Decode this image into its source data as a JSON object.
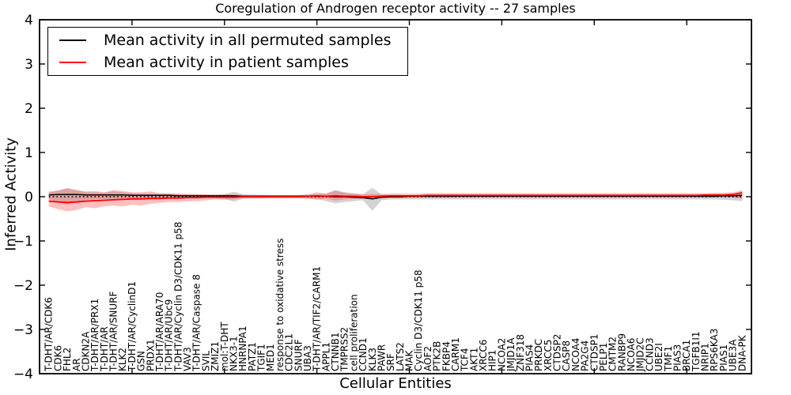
{
  "figure": {
    "title": "Coregulation of Androgen receptor activity -- 27 samples",
    "xlabel": "Cellular Entities",
    "ylabel": "Inferred Activity",
    "legend": {
      "entries": [
        {
          "label": "Mean activity in all permuted samples",
          "color": "#000000"
        },
        {
          "label": "Mean activity in patient samples",
          "color": "#ff0000"
        }
      ],
      "position": "upper left"
    }
  },
  "chart_data": {
    "type": "line",
    "title": "Coregulation of Androgen receptor activity -- 27 samples",
    "xlabel": "Cellular Entities",
    "ylabel": "Inferred Activity",
    "ylim": [
      -4,
      4
    ],
    "yticks": [
      -4,
      -3,
      -2,
      -1,
      0,
      1,
      2,
      3,
      4
    ],
    "xticks": [
      10,
      20,
      30,
      40,
      50,
      60,
      70
    ],
    "grid": false,
    "zero_line": true,
    "legend_position": "upper left",
    "frame_color": "#000000",
    "background_color": "#ffffff",
    "categories": [
      "T-DHT/AR/CDK6",
      "CDK6",
      "FHL2",
      "AR",
      "CDKN2A",
      "T-DHT/AR/PRX1",
      "T-DHT/AR",
      "T-DHT/AR/SNURF",
      "KLK2",
      "T-DHT/AR/CyclinD1",
      "GSN",
      "PRDX1",
      "T-DHT/AR/ARA70",
      "T-DHT/AR/Ubc9",
      "T-DHT/AR/Cyclin D3/CDK11 p58",
      "VAV3",
      "T-DHT/AR/Caspase 8",
      "SVIL",
      "ZMIZ1",
      "mol:T-DHT",
      "NKX3-1",
      "HNRNPA1",
      "PATZ1",
      "TGIF1",
      "MED1",
      "response to oxidative stress",
      "CDC2L1",
      "SNURF",
      "UBA3",
      "T-DHT/AR/TIF2/CARM1",
      "APPL1",
      "CTNNB1",
      "TMPRSS2",
      "cell proliferation",
      "CCND1",
      "KLK3",
      "PAWR",
      "SRF",
      "LATS2",
      "MAK",
      "Cyclin D3/CDK11 p58",
      "AOF2",
      "PTK2B",
      "FKBP4",
      "CARM1",
      "TCF4",
      "AKT1",
      "XRCC6",
      "HIP1",
      "NCOA2",
      "JMJD1A",
      "ZNF318",
      "PIAS4",
      "PRKDC",
      "XRCC5",
      "CTDSP2",
      "CASP8",
      "NCOA4",
      "PA2G4",
      "CTDSP1",
      "PELP1",
      "CMTM2",
      "RANBP9",
      "NCOA6",
      "JMJD2C",
      "CCND3",
      "UBE2I",
      "TMF1",
      "PIAS3",
      "BRCA1",
      "TGFB1I1",
      "NRIP1",
      "RPS6KA3",
      "PIAS1",
      "UBE3A",
      "DNA-PK"
    ],
    "series": [
      {
        "name": "Mean activity in all permuted samples",
        "color": "#000000",
        "width": 1.5,
        "values": [
          0.04,
          0.05,
          0.05,
          0.05,
          0.04,
          0.04,
          0.04,
          0.04,
          0.04,
          0.03,
          0.03,
          0.03,
          0.03,
          0.03,
          0.02,
          0.02,
          0.02,
          0.02,
          0.02,
          0.02,
          0.02,
          0.01,
          0.01,
          0.01,
          0.01,
          0.01,
          0.01,
          0.01,
          0.01,
          0.01,
          0.01,
          0.0,
          0.0,
          -0.01,
          -0.02,
          -0.05,
          -0.01,
          0.0,
          0.0,
          0.01,
          0.01,
          0.01,
          0.01,
          0.01,
          0.01,
          0.01,
          0.01,
          0.01,
          0.01,
          0.01,
          0.01,
          0.01,
          0.01,
          0.01,
          0.01,
          0.01,
          0.01,
          0.01,
          0.01,
          0.01,
          0.01,
          0.01,
          0.01,
          0.01,
          0.01,
          0.01,
          0.01,
          0.01,
          0.01,
          0.01,
          0.01,
          0.01,
          0.01,
          0.02,
          0.02,
          0.03
        ]
      },
      {
        "name": "Mean activity in patient samples",
        "color": "#ff0000",
        "width": 1.8,
        "values": [
          -0.1,
          -0.12,
          -0.13,
          -0.12,
          -0.1,
          -0.09,
          -0.08,
          -0.07,
          -0.06,
          -0.05,
          -0.05,
          -0.04,
          -0.04,
          -0.03,
          -0.03,
          -0.02,
          -0.02,
          -0.01,
          -0.01,
          -0.01,
          -0.01,
          0.0,
          0.0,
          0.0,
          0.0,
          0.0,
          0.0,
          0.0,
          0.01,
          0.02,
          0.01,
          0.02,
          0.01,
          0.01,
          0.0,
          0.0,
          0.01,
          0.02,
          0.02,
          0.02,
          0.02,
          0.03,
          0.03,
          0.03,
          0.03,
          0.03,
          0.03,
          0.03,
          0.03,
          0.03,
          0.03,
          0.03,
          0.03,
          0.03,
          0.03,
          0.03,
          0.03,
          0.03,
          0.03,
          0.03,
          0.03,
          0.03,
          0.03,
          0.03,
          0.03,
          0.03,
          0.03,
          0.03,
          0.03,
          0.03,
          0.03,
          0.04,
          0.04,
          0.04,
          0.05,
          0.09
        ]
      }
    ],
    "bands": [
      {
        "name": "permuted-samples-range",
        "color": "#8c8c8c",
        "opacity": 0.38,
        "upper": [
          0.12,
          0.14,
          0.2,
          0.15,
          0.1,
          0.1,
          0.09,
          0.12,
          0.1,
          0.08,
          0.07,
          0.07,
          0.06,
          0.06,
          0.06,
          0.05,
          0.05,
          0.05,
          0.05,
          0.06,
          0.11,
          0.06,
          0.05,
          0.04,
          0.04,
          0.04,
          0.04,
          0.04,
          0.05,
          0.06,
          0.08,
          0.15,
          0.1,
          0.08,
          0.06,
          0.2,
          0.05,
          0.04,
          0.04,
          0.03,
          0.03,
          0.03,
          0.03,
          0.03,
          0.03,
          0.03,
          0.03,
          0.03,
          0.03,
          0.03,
          0.03,
          0.03,
          0.03,
          0.03,
          0.03,
          0.03,
          0.03,
          0.03,
          0.03,
          0.03,
          0.03,
          0.03,
          0.03,
          0.03,
          0.03,
          0.03,
          0.03,
          0.03,
          0.03,
          0.03,
          0.03,
          0.03,
          0.03,
          0.04,
          0.05,
          0.06
        ],
        "lower": [
          -0.06,
          -0.12,
          -0.18,
          -0.12,
          -0.08,
          -0.06,
          -0.05,
          -0.06,
          -0.08,
          -0.06,
          -0.05,
          -0.05,
          -0.04,
          -0.04,
          -0.04,
          -0.04,
          -0.04,
          -0.03,
          -0.03,
          -0.05,
          -0.11,
          -0.05,
          -0.04,
          -0.03,
          -0.03,
          -0.03,
          -0.03,
          -0.03,
          -0.04,
          -0.05,
          -0.1,
          -0.15,
          -0.12,
          -0.1,
          -0.08,
          -0.32,
          -0.08,
          -0.06,
          -0.06,
          -0.06,
          -0.06,
          -0.06,
          -0.06,
          -0.06,
          -0.06,
          -0.06,
          -0.06,
          -0.06,
          -0.06,
          -0.06,
          -0.06,
          -0.06,
          -0.06,
          -0.06,
          -0.06,
          -0.06,
          -0.06,
          -0.06,
          -0.06,
          -0.06,
          -0.06,
          -0.06,
          -0.06,
          -0.06,
          -0.06,
          -0.06,
          -0.06,
          -0.06,
          -0.06,
          -0.06,
          -0.06,
          -0.06,
          -0.06,
          -0.07,
          -0.08,
          -0.1
        ]
      },
      {
        "name": "patient-samples-range",
        "color": "#ff2a2a",
        "opacity": 0.3,
        "upper": [
          0.1,
          0.14,
          0.18,
          0.15,
          0.12,
          0.13,
          0.1,
          0.15,
          0.13,
          0.1,
          0.1,
          0.12,
          0.08,
          0.08,
          0.07,
          0.06,
          0.06,
          0.05,
          0.04,
          0.05,
          0.05,
          0.03,
          0.03,
          0.04,
          0.03,
          0.03,
          0.03,
          0.03,
          0.05,
          0.1,
          0.06,
          0.14,
          0.09,
          0.06,
          0.05,
          0.06,
          0.06,
          0.07,
          0.07,
          0.07,
          0.07,
          0.08,
          0.08,
          0.08,
          0.08,
          0.08,
          0.08,
          0.08,
          0.08,
          0.08,
          0.08,
          0.08,
          0.08,
          0.08,
          0.08,
          0.08,
          0.08,
          0.08,
          0.08,
          0.08,
          0.08,
          0.08,
          0.08,
          0.08,
          0.08,
          0.08,
          0.08,
          0.08,
          0.08,
          0.08,
          0.08,
          0.08,
          0.09,
          0.09,
          0.1,
          0.15
        ],
        "lower": [
          -0.22,
          -0.28,
          -0.33,
          -0.3,
          -0.24,
          -0.26,
          -0.22,
          -0.2,
          -0.22,
          -0.18,
          -0.2,
          -0.16,
          -0.14,
          -0.12,
          -0.12,
          -0.1,
          -0.1,
          -0.08,
          -0.06,
          -0.07,
          -0.06,
          -0.04,
          -0.04,
          -0.05,
          -0.04,
          -0.04,
          -0.04,
          -0.04,
          -0.04,
          -0.07,
          -0.04,
          -0.09,
          -0.06,
          -0.05,
          -0.05,
          -0.06,
          -0.04,
          -0.03,
          -0.03,
          -0.02,
          -0.02,
          -0.02,
          -0.02,
          -0.02,
          -0.01,
          -0.01,
          -0.01,
          -0.01,
          -0.01,
          -0.01,
          -0.01,
          -0.01,
          -0.01,
          -0.01,
          -0.01,
          -0.01,
          -0.01,
          -0.01,
          -0.01,
          -0.01,
          -0.01,
          -0.01,
          -0.01,
          -0.01,
          -0.01,
          -0.01,
          -0.01,
          -0.01,
          -0.01,
          -0.01,
          -0.01,
          -0.01,
          -0.01,
          -0.01,
          -0.02,
          -0.05
        ]
      }
    ]
  }
}
